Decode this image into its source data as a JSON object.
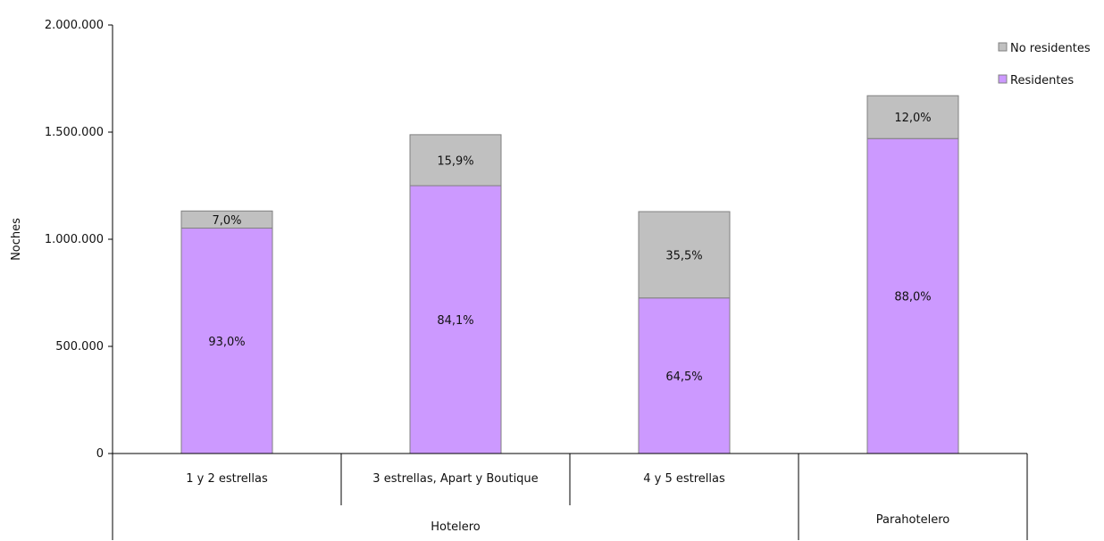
{
  "chart_data": {
    "type": "bar",
    "stacked": true,
    "ylabel": "Noches",
    "ylim": [
      0,
      2000000
    ],
    "yticks": [
      "0",
      "500.000",
      "1.000.000",
      "1.500.000",
      "2.000.000"
    ],
    "categories": [
      "1 y 2 estrellas",
      "3 estrellas, Apart y Boutique",
      "4 y 5 estrellas",
      "Parahotelero"
    ],
    "groups": [
      {
        "label": "Hotelero",
        "categories": [
          "1 y 2 estrellas",
          "3 estrellas, Apart y Boutique",
          "4 y 5 estrellas"
        ]
      },
      {
        "label": "Parahotelero",
        "categories": [
          "Parahotelero"
        ]
      }
    ],
    "category_labels": [
      "1 y 2 estrellas",
      "3 estrellas, Apart y Boutique",
      "4 y 5 estrellas",
      ""
    ],
    "series": [
      {
        "name": "Residentes",
        "color": "#cc99ff",
        "values": [
          1052000,
          1250000,
          726000,
          1470000
        ],
        "labels": [
          "93,0%",
          "84,1%",
          "64,5%",
          "88,0%"
        ]
      },
      {
        "name": "No residentes",
        "color": "#c0c0c0",
        "values": [
          80000,
          238000,
          403000,
          200000
        ],
        "labels": [
          "7,0%",
          "15,9%",
          "35,5%",
          "12,0%"
        ]
      }
    ],
    "legend_order": [
      "No residentes",
      "Residentes"
    ],
    "legend": "right",
    "grid": false
  }
}
